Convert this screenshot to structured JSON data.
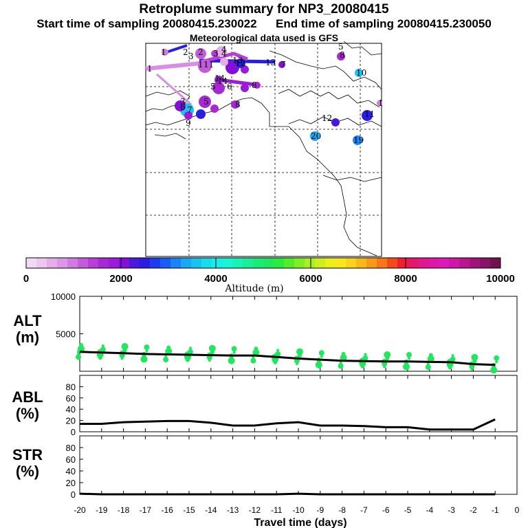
{
  "header": {
    "title": "Retroplume summary for NP3_20080415",
    "start_label": "Start time of sampling",
    "start_value": "20080415.230022",
    "end_label": "End time of sampling",
    "end_value": "20080415.230050",
    "met_text": "Meteorological data used is GFS"
  },
  "colorbar": {
    "title": "Altitude (m)",
    "ticks": [
      "0",
      "2000",
      "4000",
      "6000",
      "8000",
      "10000"
    ],
    "colors": [
      "#f4d9f4",
      "#eec7f0",
      "#e4aee9",
      "#dc98e6",
      "#d07be0",
      "#c45bd8",
      "#b73fd6",
      "#a829d4",
      "#9b1bd8",
      "#8210d8",
      "#4b1ad8",
      "#2a1de4",
      "#1c3cf0",
      "#1a5cf6",
      "#1a84f6",
      "#19a8f2",
      "#18c4ee",
      "#18dcec",
      "#18eee8",
      "#1af4d6",
      "#1af2b8",
      "#1aee98",
      "#1aea78",
      "#20e85c",
      "#2cea40",
      "#52ec2a",
      "#80ee24",
      "#a8ee20",
      "#d0ee1e",
      "#eaee1c",
      "#f6e81c",
      "#fad41c",
      "#f8b81a",
      "#f89a18",
      "#f67818",
      "#f44a1a",
      "#f01e30",
      "#e41868",
      "#e0188e",
      "#de18a6",
      "#dc18b8",
      "#cc18a4",
      "#b8168c",
      "#a01478",
      "#881464",
      "#6e1250"
    ]
  },
  "map": {
    "points": [
      {
        "label": "1",
        "color": "#d07be0"
      },
      {
        "label": "2",
        "color": "#c45bd8"
      },
      {
        "label": "3",
        "color": "#b73fd6"
      },
      {
        "label": "4",
        "color": "#e4aee9"
      },
      {
        "label": "5",
        "color": "#a829d4"
      },
      {
        "label": "6",
        "color": "#9b1bd8"
      },
      {
        "label": "7",
        "color": "#8210d8"
      },
      {
        "label": "8",
        "color": "#a829d4"
      },
      {
        "label": "9",
        "color": "#c45bd8"
      },
      {
        "label": "10",
        "color": "#18c4ee"
      },
      {
        "label": "11",
        "color": "#2a1de4"
      },
      {
        "label": "12",
        "color": "#4b1ad8"
      },
      {
        "label": "13",
        "color": "#2a1de4"
      },
      {
        "label": "14",
        "color": "#9b1bd8"
      },
      {
        "label": "19",
        "color": "#1a84f6"
      },
      {
        "label": "20",
        "color": "#19a8f2"
      }
    ]
  },
  "chart_data": [
    {
      "type": "line",
      "panel": "ALT",
      "title": "ALT",
      "ylabel": "(m)",
      "ylim": [
        0,
        10000
      ],
      "yticks": [
        "10000",
        "5000"
      ],
      "x": [
        -20,
        -19,
        -18,
        -17,
        -16,
        -15,
        -14,
        -13,
        -12,
        -11,
        -10,
        -9,
        -8,
        -7,
        -6,
        -5,
        -4,
        -3,
        -2,
        -1
      ],
      "values": [
        2600,
        2500,
        2400,
        2300,
        2250,
        2200,
        2150,
        2100,
        2100,
        1900,
        1700,
        1550,
        1400,
        1350,
        1300,
        1300,
        1250,
        1200,
        950,
        850
      ],
      "spread_color": "#20e85c"
    },
    {
      "type": "line",
      "panel": "ABL",
      "title": "ABL",
      "ylabel": "(%)",
      "ylim": [
        0,
        100
      ],
      "yticks": [
        "0",
        "20",
        "40",
        "60",
        "80"
      ],
      "x": [
        -20,
        -19,
        -18,
        -17,
        -16,
        -15,
        -14,
        -13,
        -12,
        -11,
        -10,
        -9,
        -8,
        -7,
        -6,
        -5,
        -4,
        -3,
        -2,
        -1
      ],
      "values": [
        14,
        14,
        17,
        18,
        19,
        19,
        16,
        11,
        11,
        15,
        17,
        11,
        11,
        10,
        8,
        8,
        4,
        4,
        4,
        22
      ]
    },
    {
      "type": "line",
      "panel": "STR",
      "title": "STR",
      "ylabel": "(%)",
      "ylim": [
        0,
        100
      ],
      "yticks": [
        "0",
        "20",
        "40",
        "60",
        "80"
      ],
      "x": [
        -20,
        -19,
        -18,
        -17,
        -16,
        -15,
        -14,
        -13,
        -12,
        -11,
        -10,
        -9,
        -8,
        -7,
        -6,
        -5,
        -4,
        -3,
        -2,
        -1
      ],
      "values": [
        1,
        0,
        0,
        0,
        0,
        0,
        0,
        0,
        0,
        0,
        1,
        0,
        0,
        0,
        0,
        0,
        0,
        0,
        0,
        0
      ],
      "xlabel": "Travel time (days)",
      "xticks": [
        "-20",
        "-19",
        "-18",
        "-17",
        "-16",
        "-15",
        "-14",
        "-13",
        "-12",
        "-11",
        "-10",
        "-9",
        "-8",
        "-7",
        "-6",
        "-5",
        "-4",
        "-3",
        "-2",
        "-1",
        "0"
      ]
    }
  ]
}
